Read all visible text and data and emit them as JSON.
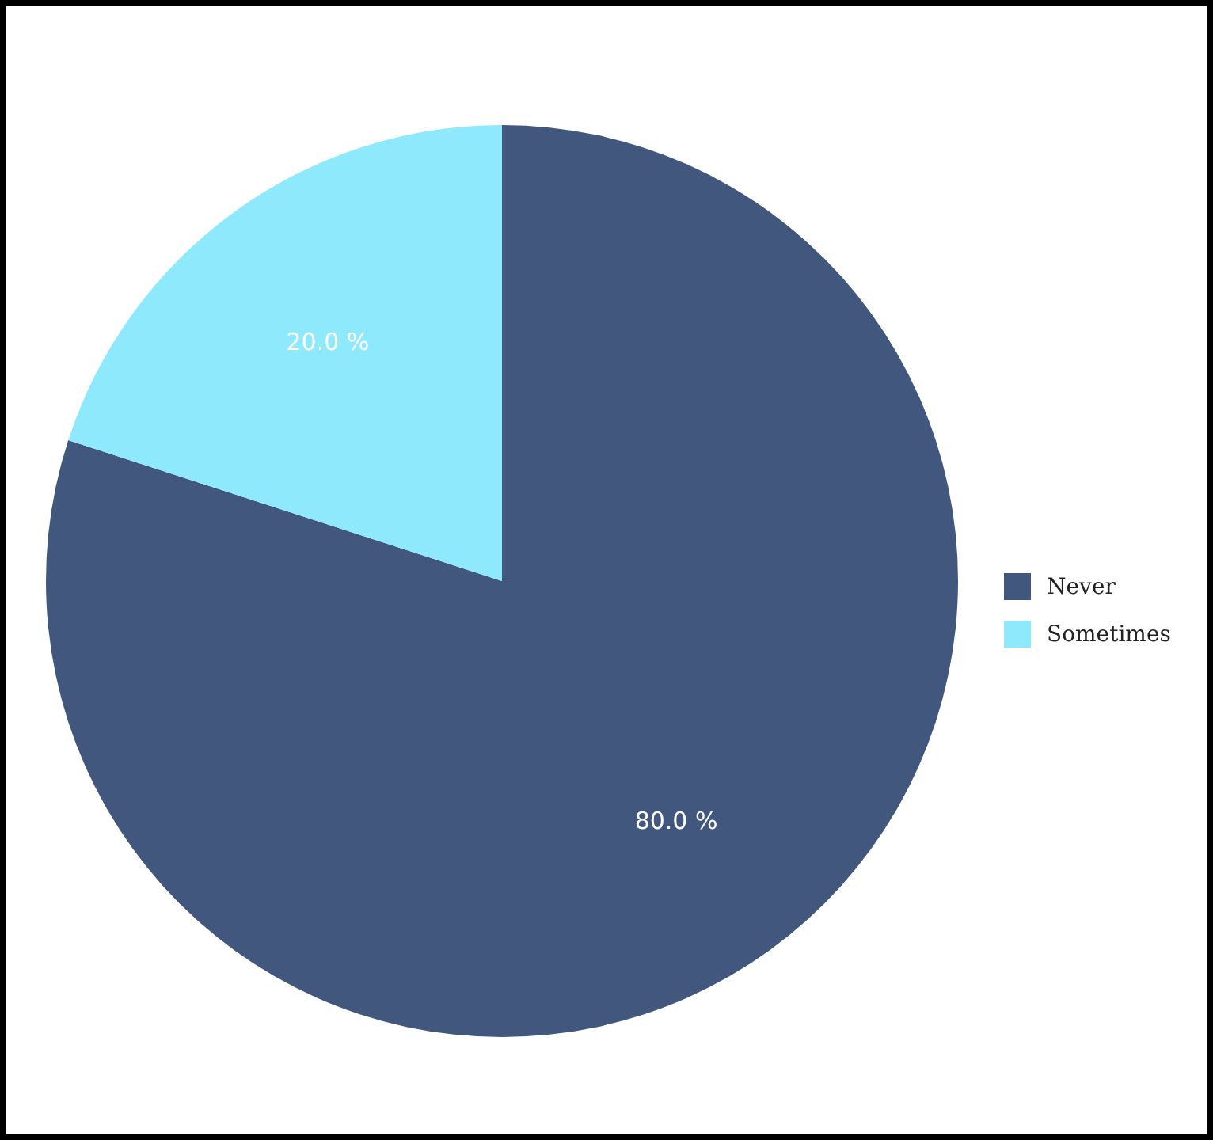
{
  "chart_data": {
    "type": "pie",
    "categories": [
      "Never",
      "Sometimes"
    ],
    "values": [
      80,
      20
    ],
    "colors": [
      "#41577d",
      "#8fe9fd"
    ],
    "value_labels": [
      "80.0 %",
      "20.0 %"
    ],
    "legend": "right"
  }
}
